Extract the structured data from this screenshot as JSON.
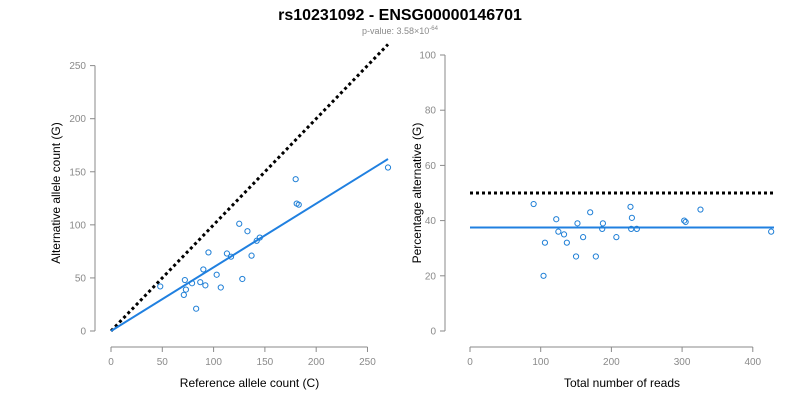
{
  "header": {
    "title": "rs10231092 - ENSG00000146701",
    "pvalue_prefix": "p-value: 3.58×10",
    "pvalue_exponent": "-64"
  },
  "colors": {
    "points": "#1f7fd6",
    "fit_line": "#2080e0",
    "reference_line": "#000000",
    "axis": "#8a8a8a"
  },
  "chart_data": [
    {
      "type": "scatter",
      "xlabel": "Reference allele count (C)",
      "ylabel": "Alternative allele count (G)",
      "xlim": [
        0,
        270
      ],
      "ylim": [
        0,
        260
      ],
      "xticks": [
        "0",
        "50",
        "100",
        "150",
        "200",
        "250"
      ],
      "yticks": [
        "0",
        "50",
        "100",
        "150",
        "200",
        "250"
      ],
      "grid": false,
      "x": [
        48,
        71,
        72,
        73,
        79,
        83,
        87,
        90,
        92,
        95,
        103,
        107,
        113,
        117,
        125,
        128,
        133,
        137,
        142,
        145,
        180,
        181,
        183,
        270
      ],
      "y": [
        42,
        34,
        48,
        39,
        45,
        21,
        46,
        58,
        43,
        74,
        53,
        41,
        73,
        70,
        101,
        49,
        94,
        71,
        85,
        88,
        143,
        120,
        119,
        154
      ],
      "reference_line": {
        "style": "dotted",
        "x": [
          0,
          270
        ],
        "y": [
          0,
          270
        ]
      },
      "fit_line": {
        "style": "solid",
        "x": [
          0,
          270
        ],
        "y": [
          0,
          162
        ]
      }
    },
    {
      "type": "scatter",
      "xlabel": "Total number of reads",
      "ylabel": "Percentage alternative (G)",
      "xlim": [
        0,
        430
      ],
      "ylim": [
        0,
        100
      ],
      "xticks": [
        "0",
        "100",
        "200",
        "300",
        "400"
      ],
      "yticks": [
        "0",
        "20",
        "40",
        "60",
        "80",
        "100"
      ],
      "grid": false,
      "x": [
        90,
        104,
        106,
        122,
        125,
        133,
        137,
        150,
        152,
        160,
        170,
        178,
        187,
        188,
        207,
        227,
        228,
        229,
        236,
        303,
        305,
        326,
        426
      ],
      "y": [
        46,
        20,
        32,
        40.5,
        36,
        35,
        32,
        27,
        39,
        34,
        43,
        27,
        37,
        39,
        34,
        45,
        37,
        41,
        37,
        40,
        39.5,
        44,
        36
      ],
      "reference_line": {
        "style": "dotted",
        "x": [
          0,
          430
        ],
        "y": [
          50,
          50
        ]
      },
      "fit_line": {
        "style": "solid",
        "x": [
          0,
          430
        ],
        "y": [
          37.5,
          37.5
        ]
      }
    }
  ]
}
